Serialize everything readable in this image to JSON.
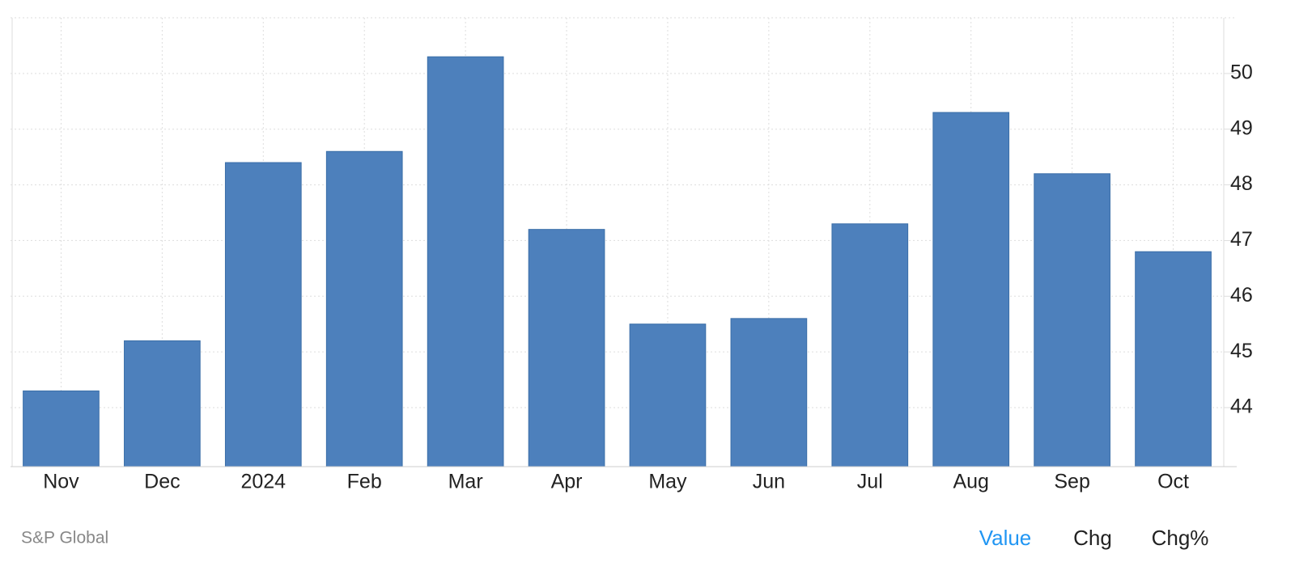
{
  "chart_data": {
    "type": "bar",
    "categories": [
      "Nov",
      "Dec",
      "2024",
      "Feb",
      "Mar",
      "Apr",
      "May",
      "Jun",
      "Jul",
      "Aug",
      "Sep",
      "Oct"
    ],
    "values": [
      44.3,
      45.2,
      48.4,
      48.6,
      50.3,
      47.2,
      45.5,
      45.6,
      47.3,
      49.3,
      48.2,
      46.8
    ],
    "color": "#4d80bc",
    "ylim": [
      42.94,
      51
    ],
    "yticks": [
      44,
      45,
      46,
      47,
      48,
      49,
      50
    ],
    "grid": true,
    "y_axis_side": "right"
  },
  "footer": {
    "source": "S&P Global",
    "tabs": [
      "Value",
      "Chg",
      "Chg%"
    ],
    "active_tab": 0
  }
}
